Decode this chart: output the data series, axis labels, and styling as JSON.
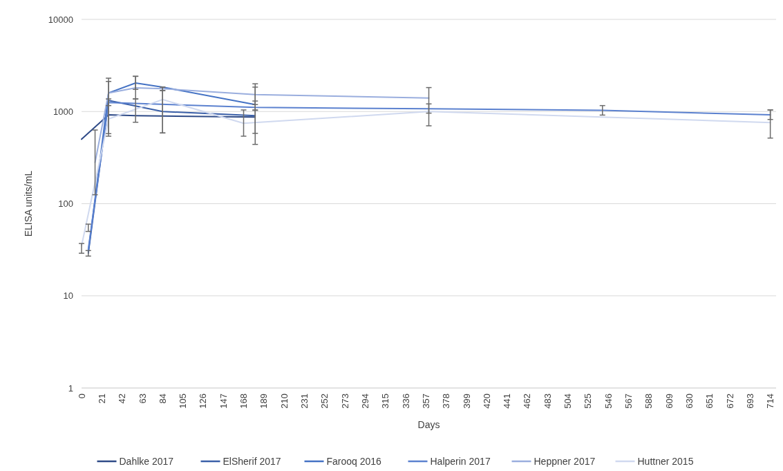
{
  "chart_data": {
    "type": "line",
    "xlabel": "Days",
    "ylabel": "ELISA units/mL",
    "log": "y",
    "grid": "y",
    "legend": "bottom",
    "marker": "none",
    "line_style": "solid",
    "xlim": [
      0,
      720
    ],
    "xticks": [
      0,
      21,
      42,
      63,
      84,
      105,
      126,
      147,
      168,
      189,
      210,
      231,
      252,
      273,
      294,
      315,
      336,
      357,
      378,
      399,
      420,
      441,
      462,
      483,
      504,
      525,
      546,
      567,
      588,
      609,
      630,
      651,
      672,
      693,
      714
    ],
    "ylim": [
      1,
      10000
    ],
    "yticks": [
      1,
      10,
      100,
      1000,
      10000
    ],
    "series": [
      {
        "name": "Dahlke 2017",
        "color": "#2e4a87",
        "x": [
          0,
          28,
          56,
          180
        ],
        "values": [
          500,
          920,
          900,
          870
        ],
        "errors": [
          null,
          null,
          [
            765,
            1370
          ],
          null
        ]
      },
      {
        "name": "ElSherif 2017",
        "color": "#3a5fa8",
        "x": [
          7,
          28,
          84,
          180
        ],
        "values": [
          29,
          1320,
          1000,
          900
        ],
        "errors": [
          [
            27,
            31
          ],
          [
            1160,
            1370
          ],
          [
            585,
            1690
          ],
          [
            580,
            1030
          ]
        ]
      },
      {
        "name": "Farooq 2016",
        "color": "#4472c4",
        "x": [
          7,
          28,
          56,
          84,
          180
        ],
        "values": [
          30,
          1590,
          2040,
          1840,
          1190
        ],
        "errors": [
          null,
          [
            540,
            2300
          ],
          [
            1740,
            2410
          ],
          null,
          [
            440,
            2000
          ]
        ]
      },
      {
        "name": "Halperin 2017",
        "color": "#5b81cf",
        "x": [
          7,
          28,
          180,
          360,
          540,
          714
        ],
        "values": [
          32,
          1250,
          1110,
          1070,
          1030,
          920
        ],
        "errors": [
          [
            50,
            60
          ],
          null,
          [
            1190,
            1300
          ],
          [
            700,
            1210
          ],
          [
            915,
            1160
          ],
          [
            820,
            1040
          ]
        ]
      },
      {
        "name": "Heppner 2017",
        "color": "#9aaede",
        "x": [
          14,
          28,
          56,
          84,
          180,
          360
        ],
        "values": [
          280,
          1590,
          1810,
          1770,
          1530,
          1400
        ],
        "errors": [
          [
            125,
            630
          ],
          [
            575,
            2120
          ],
          [
            1370,
            2410
          ],
          [
            1690,
            1840
          ],
          [
            1040,
            1840
          ],
          [
            960,
            1820
          ]
        ]
      },
      {
        "name": "Huttner 2015",
        "color": "#d0d9ef",
        "x": [
          0,
          28,
          84,
          168,
          360,
          714
        ],
        "values": [
          35,
          830,
          1350,
          745,
          1000,
          760
        ],
        "errors": [
          [
            29,
            37
          ],
          null,
          [
            585,
            1840
          ],
          [
            540,
            1040
          ],
          null,
          [
            515,
            1040
          ]
        ]
      }
    ]
  }
}
